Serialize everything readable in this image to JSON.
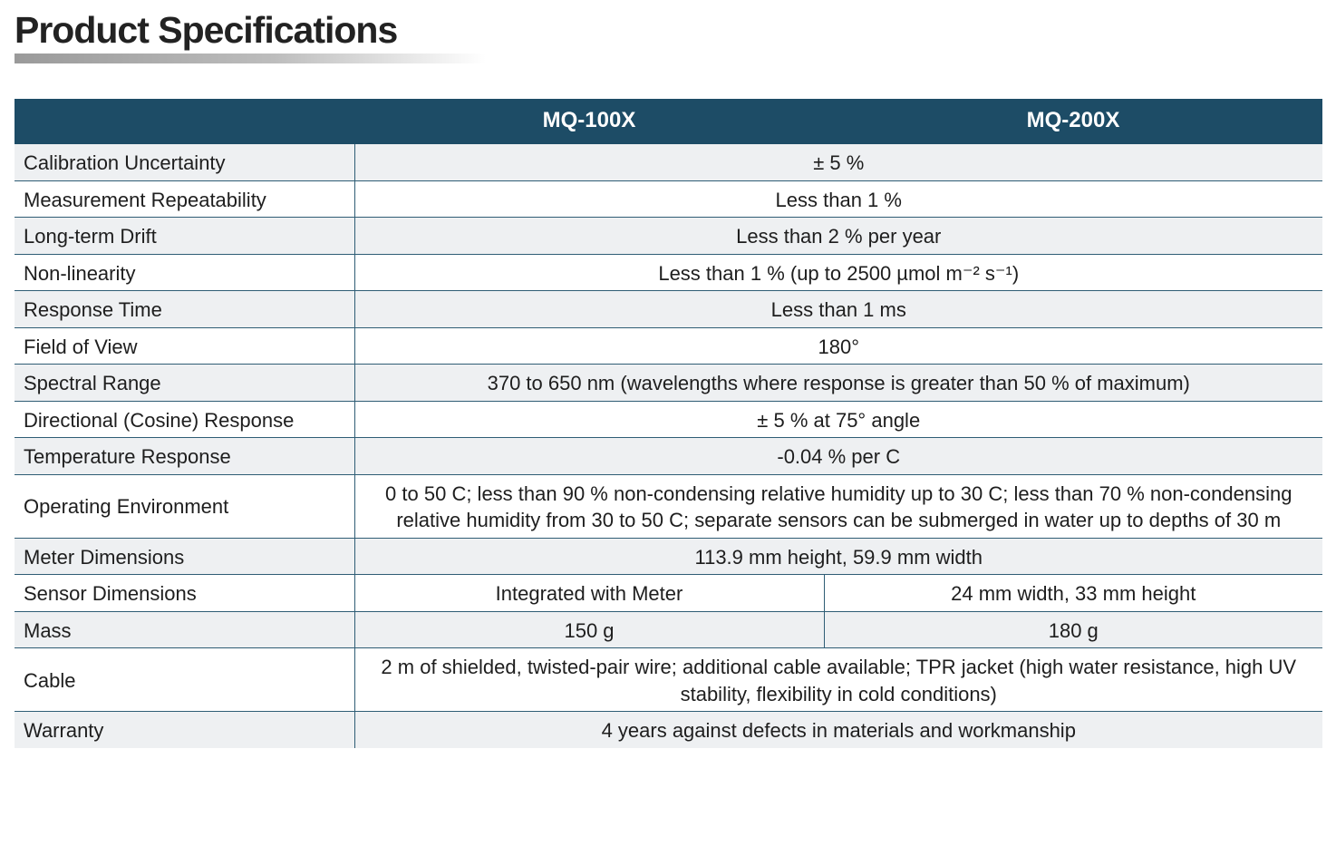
{
  "page": {
    "title": "Product Specifications"
  },
  "table": {
    "columns": [
      "",
      "MQ-100X",
      "MQ-200X"
    ],
    "rows": [
      {
        "label": "Calibration Uncertainty",
        "value": "± 5 %"
      },
      {
        "label": "Measurement Repeatability",
        "value": "Less than 1 %"
      },
      {
        "label": "Long-term Drift",
        "value": "Less than 2 % per year"
      },
      {
        "label": "Non-linearity",
        "value": "Less than 1 % (up to 2500 µmol m⁻² s⁻¹)"
      },
      {
        "label": "Response Time",
        "value": "Less than 1 ms"
      },
      {
        "label": "Field of View",
        "value": "180°"
      },
      {
        "label": "Spectral Range",
        "value": "370 to 650 nm (wavelengths where response is greater than 50 % of maximum)"
      },
      {
        "label": "Directional (Cosine) Response",
        "value": "± 5 % at 75° angle"
      },
      {
        "label": "Temperature Response",
        "value": "-0.04 % per C"
      },
      {
        "label": "Operating Environment",
        "value": "0 to 50 C; less than 90 % non-condensing relative humidity up to 30 C; less than 70 % non-condensing relative humidity from 30 to 50 C; separate sensors can be submerged in water up to depths of 30 m"
      },
      {
        "label": "Meter Dimensions",
        "value": "113.9 mm height, 59.9 mm width"
      },
      {
        "label": "Sensor Dimensions",
        "values": [
          "Integrated with Meter",
          "24 mm width, 33 mm height"
        ]
      },
      {
        "label": "Mass",
        "values": [
          "150 g",
          "180 g"
        ]
      },
      {
        "label": "Cable",
        "value": "2 m of shielded, twisted-pair wire; additional cable available; TPR jacket (high water resistance, high UV stability, flexibility in cold conditions)"
      },
      {
        "label": "Warranty",
        "value": "4 years against defects in materials and workmanship"
      }
    ]
  },
  "colors": {
    "header_bg": "#1d4c66",
    "header_text": "#ffffff",
    "row_alt_bg": "#eef0f2",
    "rule": "#2f5d75"
  }
}
